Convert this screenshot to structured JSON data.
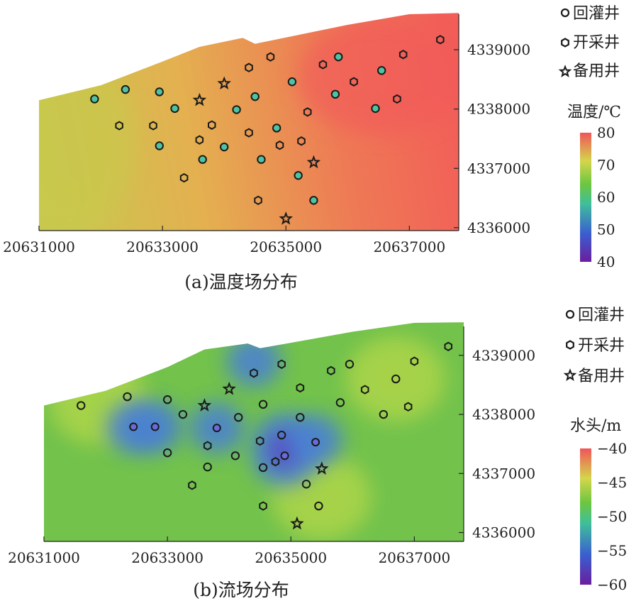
{
  "legend": {
    "reinjection": "回灌井",
    "production": "开采井",
    "standby": "备用井"
  },
  "colors": {
    "gradient": [
      "#6a1e9e",
      "#3a5fd0",
      "#3fbf9a",
      "#6cc640",
      "#d4d64b",
      "#f0555a"
    ],
    "well_outline": "#1a1a1a",
    "axis": "#222222"
  },
  "icons": {
    "reinjection": "circle-marker",
    "production": "hexagon-marker",
    "standby": "star-marker"
  },
  "chart_data": [
    {
      "type": "heatmap",
      "caption": "(a)温度场分布",
      "colorbar": {
        "title": "温度/℃",
        "range": [
          40,
          80
        ],
        "ticks": [
          40,
          50,
          60,
          70,
          80
        ]
      },
      "xlim": [
        20631000,
        20637800
      ],
      "ylim": [
        4335950,
        4339600
      ],
      "x_ticks": [
        20631000,
        20633000,
        20635000,
        20637000
      ],
      "y_ticks": [
        4336000,
        4337000,
        4338000,
        4339000
      ],
      "x_tick_labels": [
        "20631000",
        "20633000",
        "20635000",
        "20637000"
      ],
      "y_tick_labels": [
        "4336000",
        "4337000",
        "4338000",
        "4339000"
      ],
      "boundary_top": [
        [
          20631000,
          4338150
        ],
        [
          20632000,
          4338400
        ],
        [
          20633000,
          4338800
        ],
        [
          20633600,
          4339050
        ],
        [
          20634300,
          4339200
        ],
        [
          20634500,
          4339100
        ],
        [
          20635200,
          4339250
        ],
        [
          20636000,
          4339420
        ],
        [
          20637000,
          4339600
        ],
        [
          20637800,
          4339620
        ]
      ],
      "field_description_by_region": "",
      "wells": {
        "reinjection": [
          [
            20631900,
            4338170
          ],
          [
            20632400,
            4338330
          ],
          [
            20632950,
            4338290
          ],
          [
            20633200,
            4338010
          ],
          [
            20632950,
            4337380
          ],
          [
            20633650,
            4337150
          ],
          [
            20634000,
            4337360
          ],
          [
            20634500,
            4338210
          ],
          [
            20634200,
            4337990
          ],
          [
            20635100,
            4338460
          ],
          [
            20634850,
            4337680
          ],
          [
            20634600,
            4337150
          ],
          [
            20635200,
            4336880
          ],
          [
            20635450,
            4336460
          ],
          [
            20635850,
            4338880
          ],
          [
            20635800,
            4338250
          ],
          [
            20636550,
            4338650
          ],
          [
            20636450,
            4338010
          ]
        ],
        "production": [
          [
            20632300,
            4337720
          ],
          [
            20632850,
            4337720
          ],
          [
            20633600,
            4337480
          ],
          [
            20633800,
            4337730
          ],
          [
            20633350,
            4336840
          ],
          [
            20634400,
            4338700
          ],
          [
            20634750,
            4338880
          ],
          [
            20634400,
            4337600
          ],
          [
            20634900,
            4337390
          ],
          [
            20635250,
            4337460
          ],
          [
            20635350,
            4337950
          ],
          [
            20635600,
            4338750
          ],
          [
            20636100,
            4338460
          ],
          [
            20636800,
            4338170
          ],
          [
            20636900,
            4338920
          ],
          [
            20637500,
            4339170
          ],
          [
            20634550,
            4336460
          ]
        ],
        "standby": [
          [
            20633600,
            4338150
          ],
          [
            20634000,
            4338430
          ],
          [
            20635450,
            4337100
          ],
          [
            20635000,
            4336150
          ]
        ]
      }
    },
    {
      "type": "heatmap",
      "caption": "(b)流场分布",
      "colorbar": {
        "title": "水头/m",
        "range": [
          -60,
          -40
        ],
        "ticks": [
          -60,
          -55,
          -50,
          -45,
          -40
        ]
      },
      "xlim": [
        20631000,
        20637800
      ],
      "ylim": [
        4335850,
        4339550
      ],
      "x_ticks": [
        20631000,
        20633000,
        20635000,
        20637000
      ],
      "y_ticks": [
        4336000,
        4337000,
        4338000,
        4339000
      ],
      "x_tick_labels": [
        "20631000",
        "20633000",
        "20635000",
        "20637000"
      ],
      "y_tick_labels": [
        "4336000",
        "4337000",
        "4338000",
        "4339000"
      ],
      "boundary_top": [
        [
          20631000,
          4338150
        ],
        [
          20632000,
          4338400
        ],
        [
          20633000,
          4338800
        ],
        [
          20633600,
          4339100
        ],
        [
          20634300,
          4339200
        ],
        [
          20634500,
          4339120
        ],
        [
          20635200,
          4339250
        ],
        [
          20636000,
          4339400
        ],
        [
          20637000,
          4339550
        ],
        [
          20637800,
          4339560
        ]
      ],
      "lows": [
        [
          20632450,
          4337780,
          -54
        ],
        [
          20632800,
          4337790,
          -54
        ],
        [
          20633800,
          4337770,
          -55
        ],
        [
          20634400,
          4338900,
          -55
        ],
        [
          20634900,
          4337400,
          -58
        ],
        [
          20635400,
          4337560,
          -55
        ]
      ],
      "highs": [
        [
          20635500,
          4336600,
          -46
        ],
        [
          20636700,
          4338600,
          -46
        ],
        [
          20631900,
          4338200,
          -47
        ]
      ],
      "base_value": -48.5,
      "wells": {
        "reinjection": [
          [
            20631600,
            4338150
          ],
          [
            20632350,
            4338300
          ],
          [
            20633000,
            4338250
          ],
          [
            20633250,
            4338000
          ],
          [
            20633000,
            4337350
          ],
          [
            20633650,
            4337110
          ],
          [
            20634100,
            4337300
          ],
          [
            20634550,
            4338170
          ],
          [
            20634150,
            4337950
          ],
          [
            20635150,
            4337950
          ],
          [
            20634850,
            4337650
          ],
          [
            20634550,
            4337100
          ],
          [
            20635250,
            4336820
          ],
          [
            20635450,
            4336450
          ],
          [
            20635950,
            4338850
          ],
          [
            20635800,
            4338200
          ],
          [
            20636700,
            4338600
          ],
          [
            20636500,
            4338000
          ]
        ],
        "production": [
          [
            20633400,
            4336800
          ],
          [
            20633650,
            4337470
          ],
          [
            20634400,
            4338700
          ],
          [
            20634850,
            4338850
          ],
          [
            20634500,
            4337550
          ],
          [
            20634750,
            4337200
          ],
          [
            20635150,
            4338450
          ],
          [
            20635650,
            4338740
          ],
          [
            20636200,
            4338420
          ],
          [
            20636900,
            4338130
          ],
          [
            20637000,
            4338900
          ],
          [
            20637550,
            4339150
          ],
          [
            20634550,
            4336450
          ]
        ],
        "low_markers": [
          [
            20632450,
            4337790
          ],
          [
            20632800,
            4337790
          ],
          [
            20633800,
            4337770
          ],
          [
            20634900,
            4337300
          ],
          [
            20635400,
            4337530
          ]
        ],
        "standby": [
          [
            20633600,
            4338150
          ],
          [
            20634000,
            4338430
          ],
          [
            20635500,
            4337080
          ],
          [
            20635100,
            4336150
          ]
        ]
      }
    }
  ]
}
